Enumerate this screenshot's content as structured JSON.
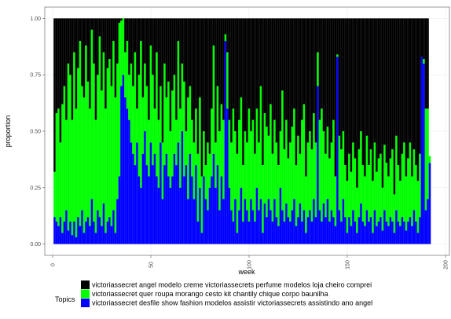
{
  "chart_data": {
    "type": "stacked-bar",
    "x_label": "week",
    "y_label": "proportion",
    "legend_title": "Topics",
    "legend_position": "bottom",
    "grid": true,
    "xlim": [
      -4,
      202
    ],
    "xticks": [
      0,
      50,
      100,
      150,
      200
    ],
    "ylim": [
      -0.05,
      1.05
    ],
    "yticks": [
      {
        "value": 0,
        "label": "0.00"
      },
      {
        "value": 0.25,
        "label": "0.25"
      },
      {
        "value": 0.5,
        "label": "0.50"
      },
      {
        "value": 0.75,
        "label": "0.75"
      },
      {
        "value": 1,
        "label": "1.00"
      }
    ],
    "x": [
      1,
      2,
      3,
      4,
      5,
      6,
      7,
      8,
      9,
      10,
      11,
      12,
      13,
      14,
      15,
      16,
      17,
      18,
      19,
      20,
      21,
      22,
      23,
      24,
      25,
      26,
      27,
      28,
      29,
      30,
      31,
      32,
      33,
      34,
      35,
      36,
      37,
      38,
      39,
      40,
      41,
      42,
      43,
      44,
      45,
      46,
      47,
      48,
      49,
      50,
      51,
      52,
      53,
      54,
      55,
      56,
      57,
      58,
      59,
      60,
      61,
      62,
      63,
      64,
      65,
      66,
      67,
      68,
      69,
      70,
      71,
      72,
      73,
      74,
      75,
      76,
      77,
      78,
      79,
      80,
      81,
      82,
      83,
      84,
      85,
      86,
      87,
      88,
      89,
      90,
      91,
      92,
      93,
      94,
      95,
      96,
      97,
      98,
      99,
      100,
      101,
      102,
      103,
      104,
      105,
      106,
      107,
      108,
      109,
      110,
      111,
      112,
      113,
      114,
      115,
      116,
      117,
      118,
      119,
      120,
      121,
      122,
      123,
      124,
      125,
      126,
      127,
      128,
      129,
      130,
      131,
      132,
      133,
      134,
      135,
      136,
      137,
      138,
      139,
      140,
      141,
      142,
      143,
      144,
      145,
      146,
      147,
      148,
      149,
      150,
      151,
      152,
      153,
      154,
      155,
      156,
      157,
      158,
      159,
      160,
      161,
      162,
      163,
      164,
      165,
      166,
      167,
      168,
      169,
      170,
      171,
      172,
      173,
      174,
      175,
      176,
      177,
      178,
      179,
      180,
      181,
      182,
      183,
      184,
      185,
      186,
      187,
      188,
      189,
      190,
      191,
      192
    ],
    "series": [
      {
        "name": "victoriassecret angel modelo creme victoriassecrets perfume modelos loja cheiro comprei",
        "color": "#000000",
        "values": [
          0.68,
          0.42,
          0.4,
          0.55,
          0.38,
          0.3,
          0.45,
          0.2,
          0.25,
          0.45,
          0.15,
          0.4,
          0.22,
          0.1,
          0.3,
          0.35,
          0.12,
          0.28,
          0.4,
          0.05,
          0.2,
          0.45,
          0.25,
          0.08,
          0.32,
          0.15,
          0.4,
          0.22,
          0.18,
          0.3,
          0.1,
          0.35,
          0.2,
          0.02,
          0.01,
          0,
          0.15,
          0.1,
          0.25,
          0.2,
          0.3,
          0.15,
          0.4,
          0.25,
          0.1,
          0.35,
          0.2,
          0.3,
          0.45,
          0.12,
          0.25,
          0.4,
          0.15,
          0.45,
          0.3,
          0.55,
          0.2,
          0.35,
          0.28,
          0.5,
          0.32,
          0.25,
          0.45,
          0.1,
          0.4,
          0.2,
          0.28,
          0.5,
          0.35,
          0.3,
          0.45,
          0.55,
          0.4,
          0.6,
          0.35,
          0.7,
          0.5,
          0.65,
          0.55,
          0.6,
          0.4,
          0.12,
          0.55,
          0.3,
          0.5,
          0.38,
          0.45,
          0.07,
          0.15,
          0.45,
          0.55,
          0.4,
          0.5,
          0.6,
          0.45,
          0.35,
          0.65,
          0.5,
          0.55,
          0.4,
          0.5,
          0.45,
          0.6,
          0.4,
          0.55,
          0.3,
          0.65,
          0.42,
          0.48,
          0.52,
          0.38,
          0.6,
          0.45,
          0.55,
          0.65,
          0.5,
          0.32,
          0.58,
          0.45,
          0.62,
          0.55,
          0.48,
          0.4,
          0.65,
          0.52,
          0.6,
          0.45,
          0.38,
          0.7,
          0.55,
          0.5,
          0.58,
          0.42,
          0.55,
          0.15,
          0.45,
          0.4,
          0.5,
          0.6,
          0.48,
          0.62,
          0.55,
          0.45,
          0.7,
          0.16,
          0.52,
          0.58,
          0.5,
          0.65,
          0.72,
          0.6,
          0.68,
          0.55,
          0.62,
          0.75,
          0.58,
          0.5,
          0.65,
          0.7,
          0.52,
          0.65,
          0.58,
          0.72,
          0.55,
          0.68,
          0.62,
          0.6,
          0.75,
          0.56,
          0.64,
          0.7,
          0.62,
          0.58,
          0.78,
          0.52,
          0.65,
          0.72,
          0.6,
          0.55,
          0.7,
          0.62,
          0.55,
          0.7,
          0.58,
          0.65,
          0.72,
          0.6,
          0.17,
          0.18,
          0.4,
          0.4,
          0
        ]
      },
      {
        "name": "victoriassecret quer roupa morango cesto kit chantily chique corpo baunilha",
        "color": "#00ff00",
        "values": [
          0.2,
          0.48,
          0.52,
          0.33,
          0.57,
          0.6,
          0.4,
          0.74,
          0.65,
          0.51,
          0.75,
          0.57,
          0.66,
          0.82,
          0.55,
          0.6,
          0.78,
          0.6,
          0.52,
          0.75,
          0.7,
          0.5,
          0.6,
          0.8,
          0.6,
          0.67,
          0.55,
          0.68,
          0.7,
          0.62,
          0.75,
          0.6,
          0.6,
          0.68,
          0.29,
          0.25,
          0.2,
          0.3,
          0.2,
          0.35,
          0.3,
          0.5,
          0.15,
          0.45,
          0.65,
          0.25,
          0.3,
          0.35,
          0.25,
          0.43,
          0.4,
          0.2,
          0.55,
          0.3,
          0.25,
          0.25,
          0.45,
          0.25,
          0.42,
          0.25,
          0.38,
          0.35,
          0.2,
          0.45,
          0.35,
          0.3,
          0.42,
          0.15,
          0.45,
          0.3,
          0.25,
          0.25,
          0.25,
          0.3,
          0.4,
          0.25,
          0.2,
          0.15,
          0.3,
          0.15,
          0.3,
          0.48,
          0.2,
          0.35,
          0.35,
          0.32,
          0.35,
          0.03,
          0.25,
          0.3,
          0.3,
          0.5,
          0.3,
          0.35,
          0.4,
          0.4,
          0.25,
          0.3,
          0.3,
          0.5,
          0.3,
          0.4,
          0.3,
          0.35,
          0.3,
          0.5,
          0.3,
          0.4,
          0.4,
          0.28,
          0.47,
          0.3,
          0.35,
          0.33,
          0.27,
          0.25,
          0.53,
          0.32,
          0.37,
          0.26,
          0.35,
          0.37,
          0.4,
          0.27,
          0.36,
          0.22,
          0.45,
          0.47,
          0.25,
          0.33,
          0.35,
          0.32,
          0.38,
          0.33,
          0.15,
          0.4,
          0.5,
          0.32,
          0.28,
          0.32,
          0.28,
          0.3,
          0.43,
          0.22,
          0.01,
          0.33,
          0.32,
          0.3,
          0.23,
          0.23,
          0.28,
          0.24,
          0.3,
          0.28,
          0.2,
          0.3,
          0.32,
          0.25,
          0.22,
          0.33,
          0.25,
          0.3,
          0.23,
          0.3,
          0.24,
          0.28,
          0.28,
          0.19,
          0.29,
          0.26,
          0.22,
          0.26,
          0.32,
          0.17,
          0.33,
          0.25,
          0.2,
          0.28,
          0.35,
          0.24,
          0.28,
          0.33,
          0.22,
          0.27,
          0.25,
          0.23,
          0.28,
          0,
          0.02,
          0.45,
          0.4,
          0.03
        ]
      },
      {
        "name": "victoriassecret desfile show fashion modelos assistir victoriassecrets assistindo ano angel",
        "color": "#0000ff",
        "values": [
          0.12,
          0.1,
          0.08,
          0.12,
          0.05,
          0.1,
          0.15,
          0.06,
          0.1,
          0.04,
          0.1,
          0.03,
          0.12,
          0.08,
          0.15,
          0.05,
          0.1,
          0.12,
          0.08,
          0.2,
          0.1,
          0.05,
          0.15,
          0.12,
          0.08,
          0.18,
          0.05,
          0.1,
          0.12,
          0.08,
          0.15,
          0.05,
          0.2,
          0.3,
          0.7,
          0.75,
          0.65,
          0.6,
          0.55,
          0.45,
          0.4,
          0.35,
          0.45,
          0.3,
          0.25,
          0.4,
          0.5,
          0.35,
          0.3,
          0.45,
          0.35,
          0.4,
          0.3,
          0.25,
          0.45,
          0.2,
          0.35,
          0.4,
          0.3,
          0.25,
          0.3,
          0.4,
          0.35,
          0.45,
          0.25,
          0.5,
          0.3,
          0.35,
          0.2,
          0.4,
          0.3,
          0.2,
          0.35,
          0.1,
          0.25,
          0.05,
          0.3,
          0.2,
          0.15,
          0.25,
          0.3,
          0.4,
          0.25,
          0.35,
          0.15,
          0.3,
          0.2,
          0.9,
          0.6,
          0.25,
          0.15,
          0.1,
          0.2,
          0.05,
          0.15,
          0.25,
          0.1,
          0.2,
          0.15,
          0.1,
          0.2,
          0.15,
          0.1,
          0.25,
          0.15,
          0.2,
          0.05,
          0.18,
          0.12,
          0.2,
          0.15,
          0.1,
          0.2,
          0.12,
          0.08,
          0.25,
          0.15,
          0.1,
          0.18,
          0.12,
          0.1,
          0.15,
          0.2,
          0.08,
          0.12,
          0.18,
          0.1,
          0.15,
          0.05,
          0.12,
          0.15,
          0.1,
          0.2,
          0.12,
          0.7,
          0.15,
          0.1,
          0.18,
          0.12,
          0.2,
          0.1,
          0.15,
          0.12,
          0.08,
          0.83,
          0.15,
          0.1,
          0.2,
          0.12,
          0.05,
          0.12,
          0.08,
          0.15,
          0.1,
          0.05,
          0.12,
          0.18,
          0.1,
          0.08,
          0.15,
          0.1,
          0.12,
          0.05,
          0.15,
          0.08,
          0.1,
          0.12,
          0.06,
          0.15,
          0.1,
          0.08,
          0.12,
          0.1,
          0.05,
          0.15,
          0.1,
          0.08,
          0.12,
          0.1,
          0.06,
          0.1,
          0.12,
          0.08,
          0.15,
          0.1,
          0.05,
          0.12,
          0.83,
          0.8,
          0.15,
          0.2,
          0.36
        ]
      }
    ]
  }
}
